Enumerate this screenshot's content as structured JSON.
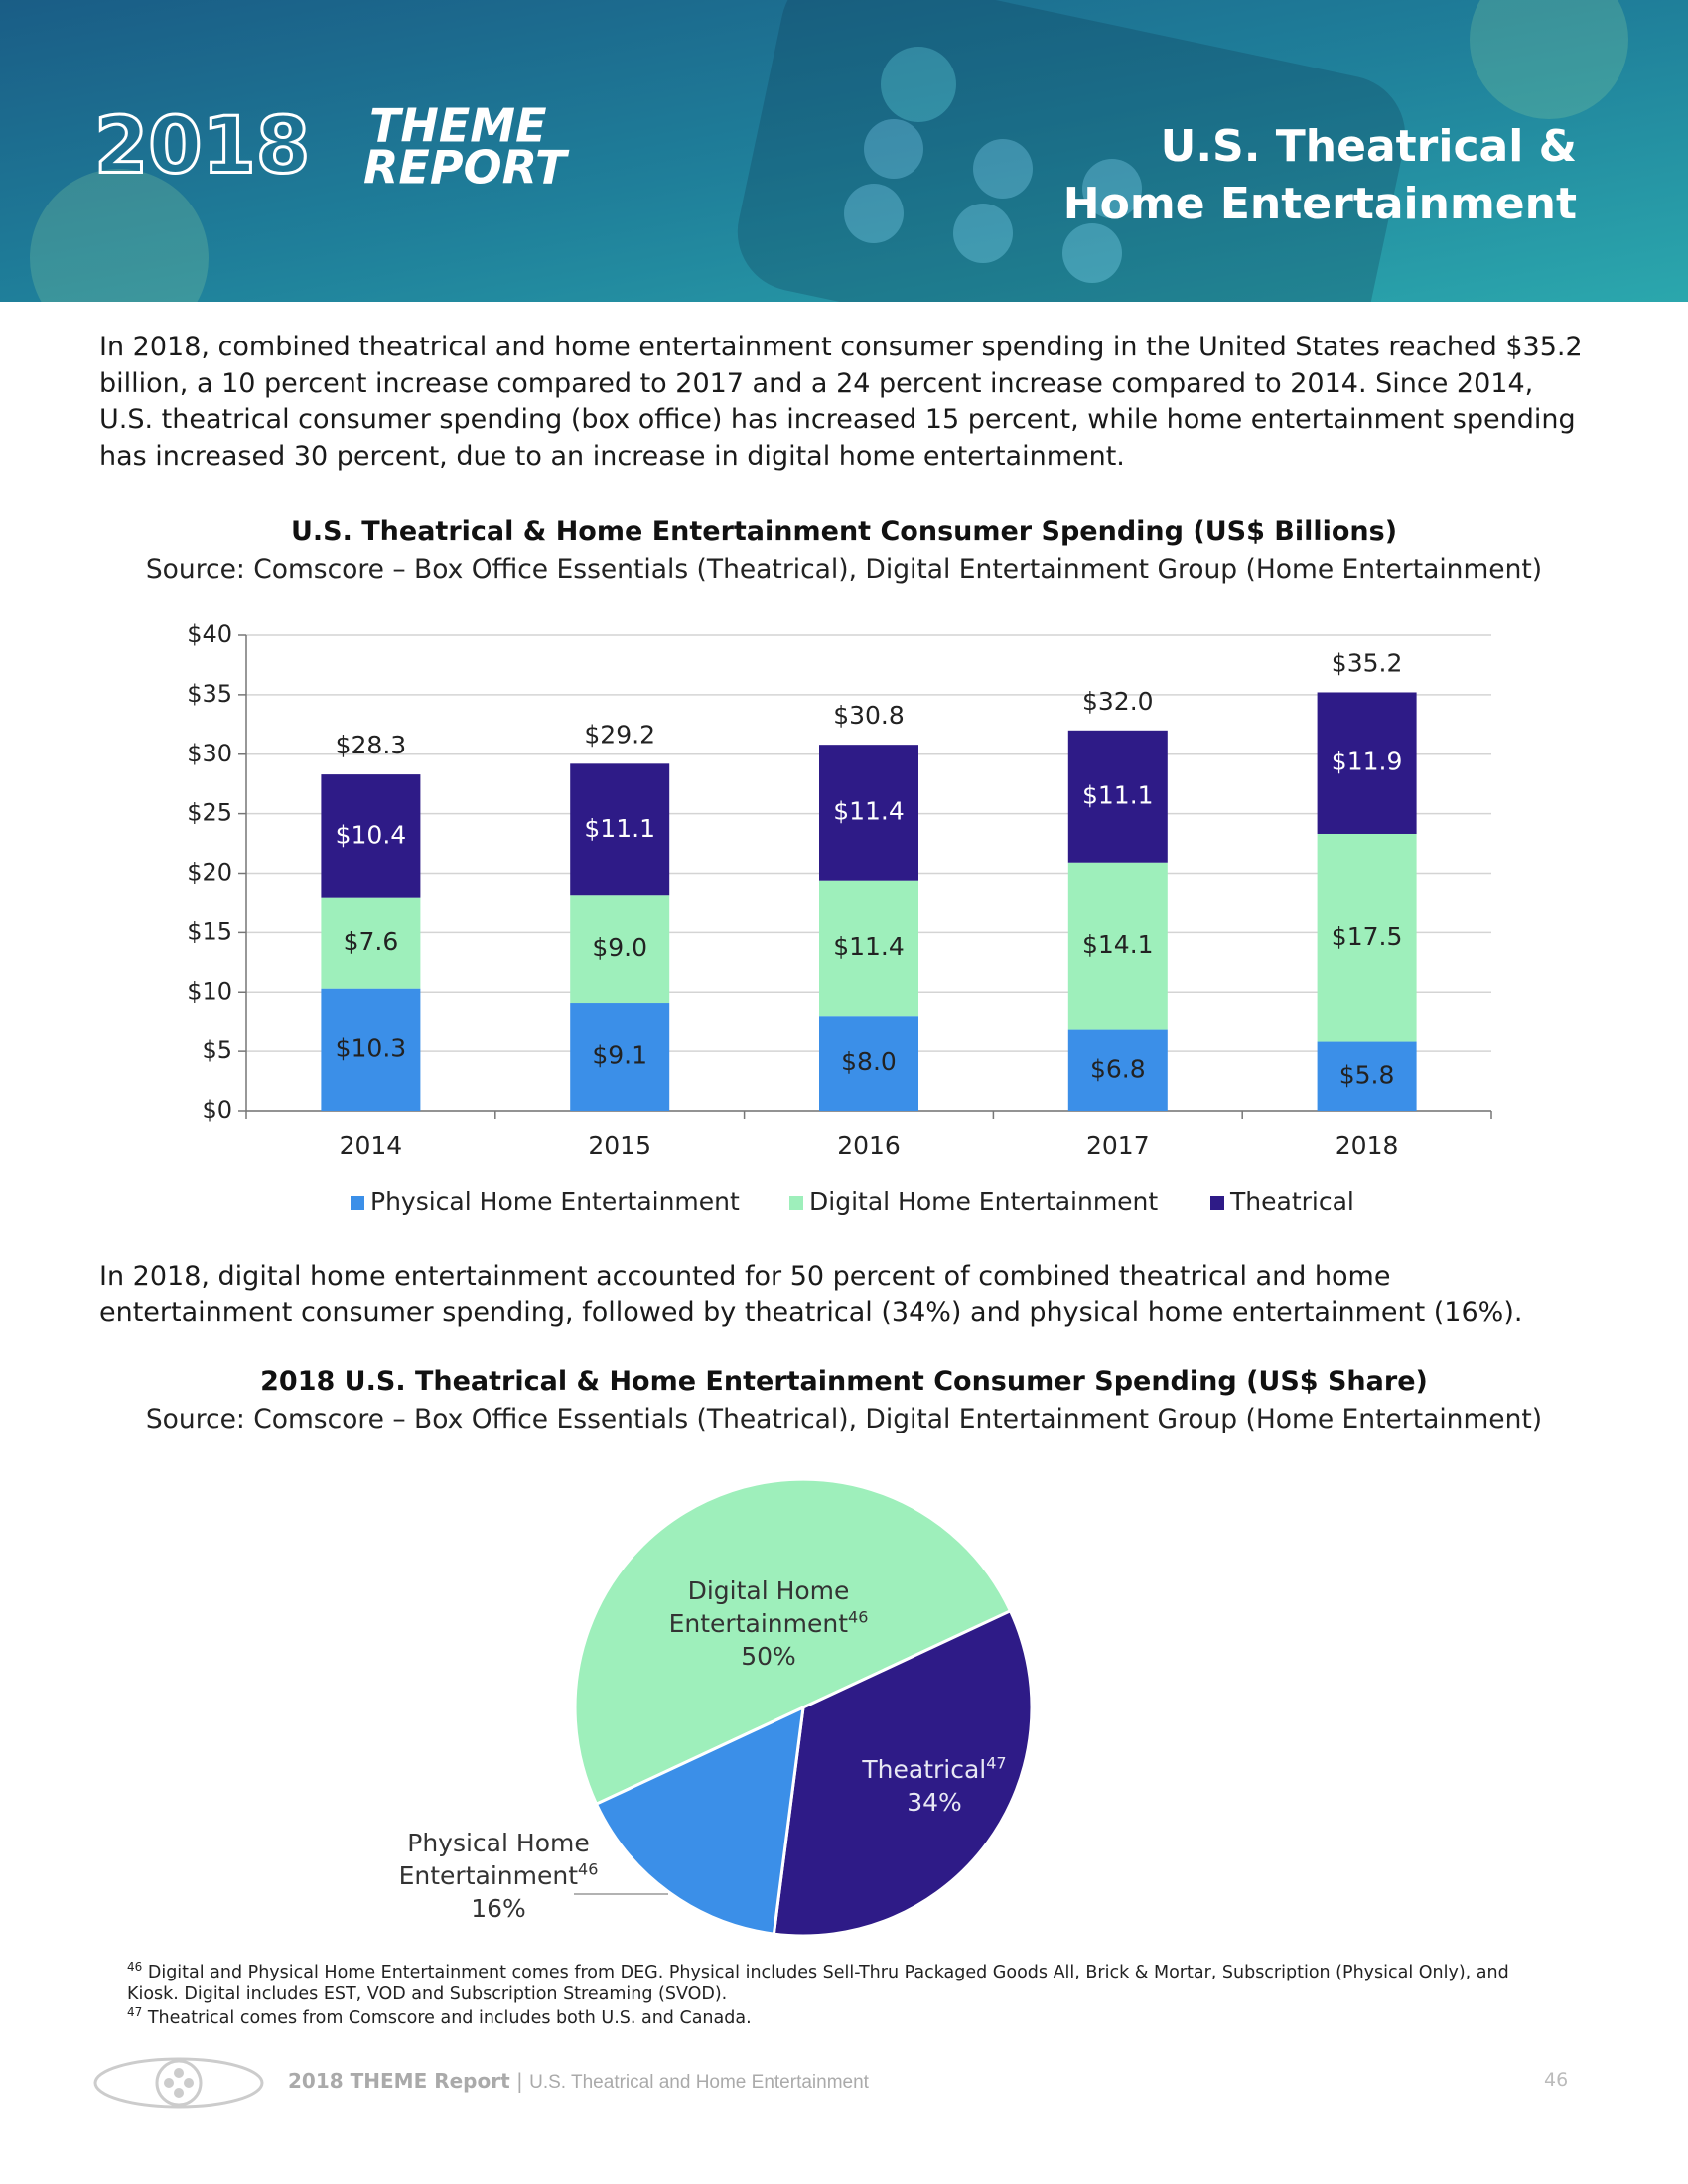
{
  "header": {
    "logo_year": "2018",
    "logo_word1": "THEME",
    "logo_word2": "REPORT",
    "title_line1": "U.S. Theatrical &",
    "title_line2": "Home Entertainment"
  },
  "paragraphs": [
    "In 2018, combined theatrical and home entertainment consumer spending in the United States reached $35.2 billion, a 10 percent increase compared to 2017 and a 24 percent increase compared to 2014. Since 2014, U.S. theatrical consumer spending (box office) has increased 15 percent, while home entertainment spending has increased 30 percent, due to an increase in digital home entertainment.",
    "In 2018, digital home entertainment accounted for 50 percent of combined theatrical and home entertainment consumer spending, followed by theatrical (34%) and physical home entertainment (16%)."
  ],
  "chart_data": [
    {
      "type": "bar",
      "stacked": true,
      "title": "U.S. Theatrical & Home Entertainment Consumer Spending (US$ Billions)",
      "subtitle": "Source: Comscore – Box Office Essentials (Theatrical), Digital Entertainment Group (Home Entertainment)",
      "categories": [
        "2014",
        "2015",
        "2016",
        "2017",
        "2018"
      ],
      "series": [
        {
          "name": "Physical Home Entertainment",
          "color": "#3b8fe8",
          "values": [
            10.3,
            9.1,
            8.0,
            6.8,
            5.8
          ],
          "value_labels": [
            "$10.3",
            "$9.1",
            "$8.0",
            "$6.8",
            "$5.8"
          ]
        },
        {
          "name": "Digital Home Entertainment",
          "color": "#9eefbb",
          "values": [
            7.6,
            9.0,
            11.4,
            14.1,
            17.5
          ],
          "value_labels": [
            "$7.6",
            "$9.0",
            "$11.4",
            "$14.1",
            "$17.5"
          ]
        },
        {
          "name": "Theatrical",
          "color": "#2e1b87",
          "values": [
            10.4,
            11.1,
            11.4,
            11.1,
            11.9
          ],
          "value_labels": [
            "$10.4",
            "$11.1",
            "$11.4",
            "$11.1",
            "$11.9"
          ]
        }
      ],
      "totals": [
        28.3,
        29.2,
        30.8,
        32.0,
        35.2
      ],
      "total_labels": [
        "$28.3",
        "$29.2",
        "$30.8",
        "$32.0",
        "$35.2"
      ],
      "ylim": [
        0,
        40
      ],
      "yticks": [
        {
          "value": 0,
          "label": "$0"
        },
        {
          "value": 5,
          "label": "$5"
        },
        {
          "value": 10,
          "label": "$10"
        },
        {
          "value": 15,
          "label": "$15"
        },
        {
          "value": 20,
          "label": "$20"
        },
        {
          "value": 25,
          "label": "$25"
        },
        {
          "value": 30,
          "label": "$30"
        },
        {
          "value": 35,
          "label": "$35"
        },
        {
          "value": 40,
          "label": "$40"
        }
      ],
      "grid": true,
      "legend": "bottom"
    },
    {
      "type": "pie",
      "title": "2018 U.S. Theatrical & Home Entertainment Consumer Spending (US$ Share)",
      "subtitle": "Source: Comscore – Box Office Essentials (Theatrical), Digital Entertainment Group (Home Entertainment)",
      "categories": [
        "Digital Home Entertainment",
        "Theatrical",
        "Physical Home Entertainment"
      ],
      "footnote_refs": [
        "46",
        "47",
        "46"
      ],
      "values": [
        50,
        34,
        16
      ],
      "value_labels": [
        "50%",
        "34%",
        "16%"
      ],
      "colors": [
        "#9eefbb",
        "#2e1b87",
        "#3b8fe8"
      ]
    }
  ],
  "footnotes": [
    {
      "number": "46",
      "text": "Digital and Physical Home Entertainment comes from DEG. Physical includes Sell-Thru Packaged Goods All, Brick & Mortar, Subscription (Physical Only), and Kiosk. Digital includes EST, VOD and Subscription Streaming (SVOD)."
    },
    {
      "number": "47",
      "text": "Theatrical comes from Comscore and includes both U.S. and Canada."
    }
  ],
  "footer": {
    "report": "2018 THEME Report",
    "separator": "|",
    "section": "U.S. Theatrical and Home Entertainment",
    "page": "46"
  }
}
